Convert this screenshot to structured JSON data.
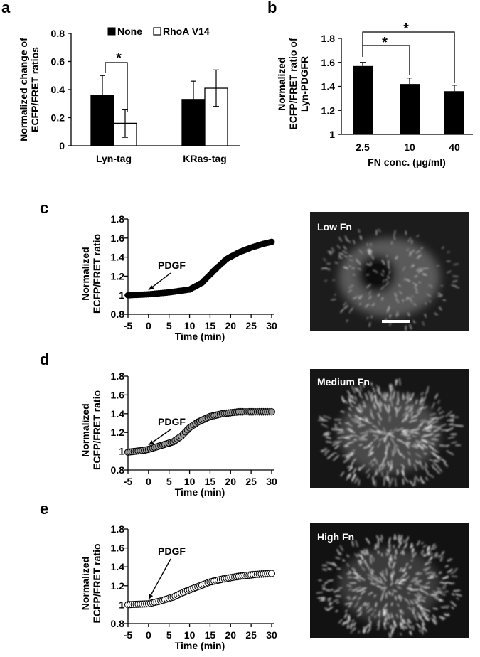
{
  "panels": {
    "a": "a",
    "b": "b",
    "c": "c",
    "d": "d",
    "e": "e"
  },
  "chart_data": [
    {
      "id": "a",
      "type": "bar",
      "ylabel": [
        "Normalized change of",
        "ECFP/FRET ratios"
      ],
      "categories": [
        "Lyn-tag",
        "KRas-tag"
      ],
      "ylim": [
        0,
        0.8
      ],
      "yticks": [
        "0",
        "0.2",
        "0.4",
        "0.6",
        "0.8"
      ],
      "series": [
        {
          "name": "None",
          "values": [
            0.36,
            0.33
          ],
          "errors": [
            0.14,
            0.13
          ],
          "color": "#000000"
        },
        {
          "name": "RhoA V14",
          "values": [
            0.16,
            0.41
          ],
          "errors": [
            0.1,
            0.13
          ],
          "color": "#ffffff"
        }
      ],
      "significance": "*"
    },
    {
      "id": "b",
      "type": "bar",
      "ylabel": [
        "Normalized",
        "ECFP/FRET ratio of",
        "Lyn-PDGFR"
      ],
      "xlabel": "FN conc. (μg/ml)",
      "categories": [
        "2.5",
        "10",
        "40"
      ],
      "ylim": [
        1,
        1.8
      ],
      "yticks": [
        "1",
        "1.2",
        "1.4",
        "1.6",
        "1.8"
      ],
      "values": [
        1.57,
        1.42,
        1.36
      ],
      "errors": [
        0.03,
        0.05,
        0.05
      ],
      "significance": [
        "*",
        "*"
      ]
    },
    {
      "id": "c",
      "type": "line",
      "ylabel": [
        "Normalized",
        "ECFP/FRET ratio"
      ],
      "xlabel": "Time (min)",
      "xlim": [
        -5,
        30
      ],
      "ylim": [
        0.8,
        1.8
      ],
      "xticks": [
        "-5",
        "0",
        "5",
        "10",
        "15",
        "20",
        "25",
        "30"
      ],
      "yticks": [
        "0.8",
        "1",
        "1.2",
        "1.4",
        "1.6",
        "1.8"
      ],
      "annotation": "PDGF",
      "image_label": "Low Fn",
      "marker_fill": "#000000",
      "keypoints": [
        [
          -5,
          1.0
        ],
        [
          0,
          1.01
        ],
        [
          5,
          1.03
        ],
        [
          10,
          1.06
        ],
        [
          13,
          1.13
        ],
        [
          16,
          1.26
        ],
        [
          19,
          1.38
        ],
        [
          22,
          1.45
        ],
        [
          25,
          1.5
        ],
        [
          28,
          1.54
        ],
        [
          30,
          1.56
        ]
      ],
      "err": 0.03
    },
    {
      "id": "d",
      "type": "line",
      "ylabel": [
        "Normalized",
        "ECFP/FRET ratio"
      ],
      "xlabel": "Time (min)",
      "xlim": [
        -5,
        30
      ],
      "ylim": [
        0.8,
        1.8
      ],
      "xticks": [
        "-5",
        "0",
        "5",
        "10",
        "15",
        "20",
        "25",
        "30"
      ],
      "yticks": [
        "0.8",
        "1",
        "1.2",
        "1.4",
        "1.6",
        "1.8"
      ],
      "annotation": "PDGF",
      "image_label": "Medium Fn",
      "marker_fill": "#9a9a9a",
      "keypoints": [
        [
          -5,
          0.99
        ],
        [
          -1,
          1.01
        ],
        [
          0,
          1.02
        ],
        [
          3,
          1.06
        ],
        [
          6,
          1.1
        ],
        [
          8,
          1.16
        ],
        [
          10,
          1.25
        ],
        [
          12,
          1.31
        ],
        [
          15,
          1.37
        ],
        [
          18,
          1.4
        ],
        [
          22,
          1.42
        ],
        [
          26,
          1.42
        ],
        [
          30,
          1.42
        ]
      ],
      "err": 0.04
    },
    {
      "id": "e",
      "type": "line",
      "ylabel": [
        "Normalized",
        "ECFP/FRET ratio"
      ],
      "xlabel": "Time (min)",
      "xlim": [
        -5,
        30
      ],
      "ylim": [
        0.8,
        1.8
      ],
      "xticks": [
        "-5",
        "0",
        "5",
        "10",
        "15",
        "20",
        "25",
        "30"
      ],
      "yticks": [
        "0.8",
        "1",
        "1.2",
        "1.4",
        "1.6",
        "1.8"
      ],
      "annotation": "PDGF",
      "image_label": "High Fn",
      "marker_fill": "#ffffff",
      "keypoints": [
        [
          -5,
          1.0
        ],
        [
          0,
          1.01
        ],
        [
          3,
          1.04
        ],
        [
          6,
          1.08
        ],
        [
          9,
          1.14
        ],
        [
          12,
          1.19
        ],
        [
          15,
          1.24
        ],
        [
          18,
          1.27
        ],
        [
          22,
          1.3
        ],
        [
          26,
          1.32
        ],
        [
          30,
          1.33
        ]
      ],
      "err": 0.04
    }
  ]
}
